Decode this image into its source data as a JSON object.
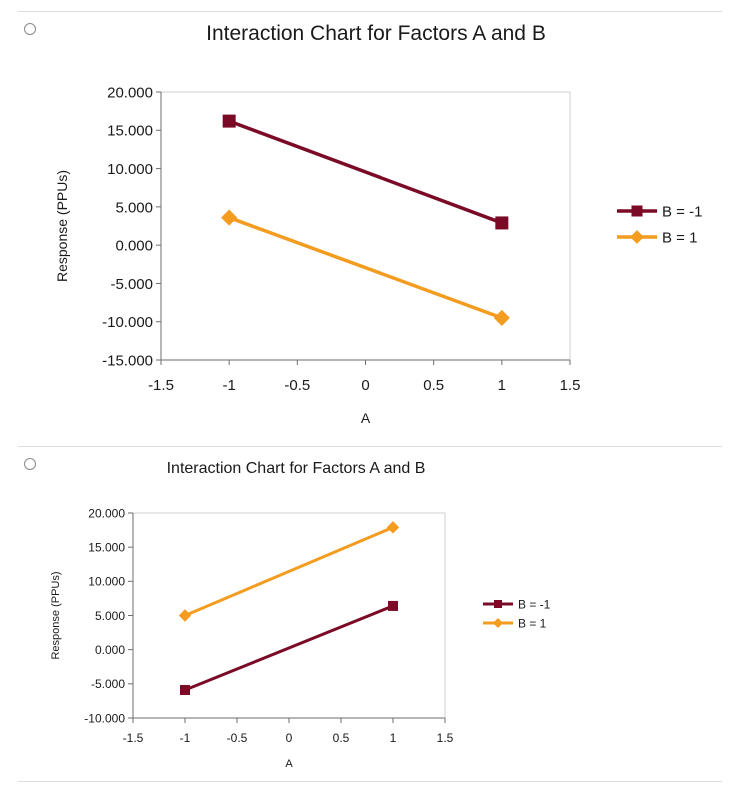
{
  "options": [
    {
      "chart_data": {
        "type": "line",
        "title": "Interaction Chart for Factors A and B",
        "xlabel": "A",
        "ylabel": "Response (PPUs)",
        "xlim": [
          -1.5,
          1.5
        ],
        "ylim": [
          -15,
          20
        ],
        "x_ticks": [
          "-1.5",
          "-1",
          "-0.5",
          "0",
          "0.5",
          "1",
          "1.5"
        ],
        "y_ticks": [
          "20.000",
          "15.000",
          "10.000",
          "5.000",
          "0.000",
          "-5.000",
          "-10.000",
          "-15.000"
        ],
        "grid": false,
        "legend_position": "right",
        "series": [
          {
            "name": "B = -1",
            "color": "#7b0a26",
            "marker": "square",
            "x": [
              -1,
              1
            ],
            "y": [
              16.2,
              2.9
            ]
          },
          {
            "name": "B = 1",
            "color": "#f39c1f",
            "marker": "diamond",
            "x": [
              -1,
              1
            ],
            "y": [
              3.6,
              -9.5
            ]
          }
        ]
      }
    },
    {
      "chart_data": {
        "type": "line",
        "title": "Interaction Chart for Factors A and B",
        "xlabel": "A",
        "ylabel": "Response (PPUs)",
        "xlim": [
          -1.5,
          1.5
        ],
        "ylim": [
          -10,
          20
        ],
        "x_ticks": [
          "-1.5",
          "-1",
          "-0.5",
          "0",
          "0.5",
          "1",
          "1.5"
        ],
        "y_ticks": [
          "20.000",
          "15.000",
          "10.000",
          "5.000",
          "0.000",
          "-5.000",
          "-10.000"
        ],
        "grid": false,
        "legend_position": "right",
        "series": [
          {
            "name": "B = -1",
            "color": "#7b0a26",
            "marker": "square",
            "x": [
              -1,
              1
            ],
            "y": [
              -5.9,
              6.4
            ]
          },
          {
            "name": "B = 1",
            "color": "#f39c1f",
            "marker": "diamond",
            "x": [
              -1,
              1
            ],
            "y": [
              5.0,
              17.9
            ]
          }
        ]
      }
    }
  ]
}
